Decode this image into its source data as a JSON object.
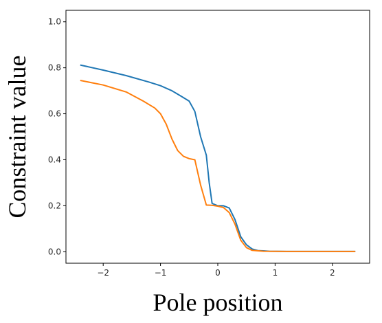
{
  "chart_data": {
    "type": "line",
    "title": "",
    "xlabel": "Pole position",
    "ylabel": "Constraint value",
    "xlim": [
      -2.65,
      2.65
    ],
    "ylim": [
      -0.05,
      1.05
    ],
    "x_ticks": [
      -2,
      -1,
      0,
      1,
      2
    ],
    "x_tick_labels": [
      "−2",
      "−1",
      "0",
      "1",
      "2"
    ],
    "y_ticks": [
      0.0,
      0.2,
      0.4,
      0.6,
      0.8,
      1.0
    ],
    "y_tick_labels": [
      "0.0",
      "0.2",
      "0.4",
      "0.6",
      "0.8",
      "1.0"
    ],
    "grid": false,
    "legend": false,
    "series": [
      {
        "color": "#1f77b4",
        "points": [
          [
            -2.4,
            0.812
          ],
          [
            -2.0,
            0.79
          ],
          [
            -1.6,
            0.766
          ],
          [
            -1.2,
            0.738
          ],
          [
            -1.0,
            0.722
          ],
          [
            -0.8,
            0.7
          ],
          [
            -0.65,
            0.678
          ],
          [
            -0.5,
            0.655
          ],
          [
            -0.4,
            0.61
          ],
          [
            -0.3,
            0.5
          ],
          [
            -0.2,
            0.42
          ],
          [
            -0.15,
            0.3
          ],
          [
            -0.1,
            0.21
          ],
          [
            0.0,
            0.2
          ],
          [
            0.1,
            0.2
          ],
          [
            0.2,
            0.19
          ],
          [
            0.3,
            0.14
          ],
          [
            0.4,
            0.065
          ],
          [
            0.5,
            0.03
          ],
          [
            0.6,
            0.012
          ],
          [
            0.7,
            0.005
          ],
          [
            0.9,
            0.002
          ],
          [
            1.2,
            0.001
          ],
          [
            2.4,
            0.001
          ]
        ]
      },
      {
        "color": "#ff7f0e",
        "points": [
          [
            -2.4,
            0.745
          ],
          [
            -2.0,
            0.725
          ],
          [
            -1.6,
            0.695
          ],
          [
            -1.3,
            0.655
          ],
          [
            -1.1,
            0.625
          ],
          [
            -1.0,
            0.6
          ],
          [
            -0.9,
            0.555
          ],
          [
            -0.8,
            0.49
          ],
          [
            -0.7,
            0.44
          ],
          [
            -0.6,
            0.415
          ],
          [
            -0.5,
            0.405
          ],
          [
            -0.4,
            0.4
          ],
          [
            -0.3,
            0.29
          ],
          [
            -0.2,
            0.203
          ],
          [
            -0.1,
            0.202
          ],
          [
            0.0,
            0.198
          ],
          [
            0.1,
            0.192
          ],
          [
            0.2,
            0.17
          ],
          [
            0.3,
            0.12
          ],
          [
            0.4,
            0.05
          ],
          [
            0.5,
            0.018
          ],
          [
            0.6,
            0.006
          ],
          [
            0.8,
            0.002
          ],
          [
            1.2,
            0.001
          ],
          [
            2.4,
            0.001
          ]
        ]
      }
    ]
  }
}
